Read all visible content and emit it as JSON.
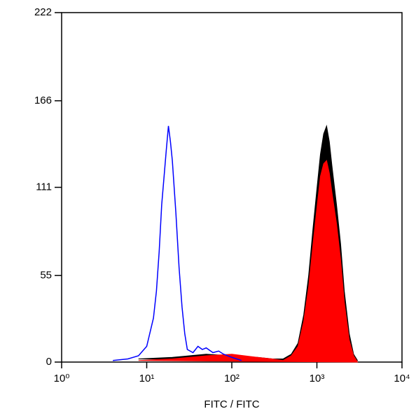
{
  "chart_data": {
    "type": "histogram",
    "xlabel": "FITC / FITC",
    "xscale": "log",
    "xlim": [
      1,
      10000
    ],
    "xticks": [
      {
        "value": 1,
        "label": "10⁰"
      },
      {
        "value": 10,
        "label": "10¹"
      },
      {
        "value": 100,
        "label": "10²"
      },
      {
        "value": 1000,
        "label": "10³"
      },
      {
        "value": 10000,
        "label": "10⁴"
      }
    ],
    "ylim": [
      0,
      222
    ],
    "yticks": [
      0,
      55,
      111,
      166,
      222
    ],
    "series": [
      {
        "color": "#000000",
        "fill": true,
        "x": [
          8,
          20,
          50,
          100,
          200,
          300,
          400,
          500,
          600,
          700,
          800,
          900,
          1000,
          1100,
          1200,
          1300,
          1400,
          1500,
          1700,
          1900,
          2100,
          2400,
          2700,
          3000
        ],
        "values": [
          2,
          3,
          5,
          4,
          3,
          2,
          2,
          5,
          12,
          30,
          55,
          85,
          110,
          132,
          145,
          150,
          140,
          125,
          100,
          75,
          45,
          18,
          5,
          1
        ]
      },
      {
        "color": "#ff0000",
        "fill": true,
        "x": [
          8,
          20,
          50,
          100,
          200,
          300,
          400,
          500,
          600,
          700,
          800,
          900,
          1000,
          1100,
          1200,
          1300,
          1400,
          1500,
          1700,
          1900,
          2100,
          2400,
          2700,
          3000
        ],
        "values": [
          1,
          2,
          4,
          5,
          3,
          2,
          1,
          4,
          10,
          26,
          48,
          75,
          98,
          118,
          126,
          128,
          120,
          108,
          88,
          65,
          38,
          14,
          4,
          0
        ]
      },
      {
        "color": "#0000ff",
        "fill": false,
        "x": [
          4,
          6,
          8,
          10,
          12,
          13,
          14,
          15,
          16,
          17,
          18,
          19,
          20,
          22,
          24,
          26,
          28,
          30,
          35,
          40,
          45,
          50,
          60,
          70,
          80,
          100,
          130
        ],
        "values": [
          1,
          2,
          4,
          10,
          28,
          45,
          70,
          100,
          118,
          135,
          150,
          140,
          128,
          95,
          60,
          35,
          18,
          8,
          6,
          10,
          8,
          9,
          6,
          7,
          5,
          3,
          1
        ]
      }
    ]
  }
}
